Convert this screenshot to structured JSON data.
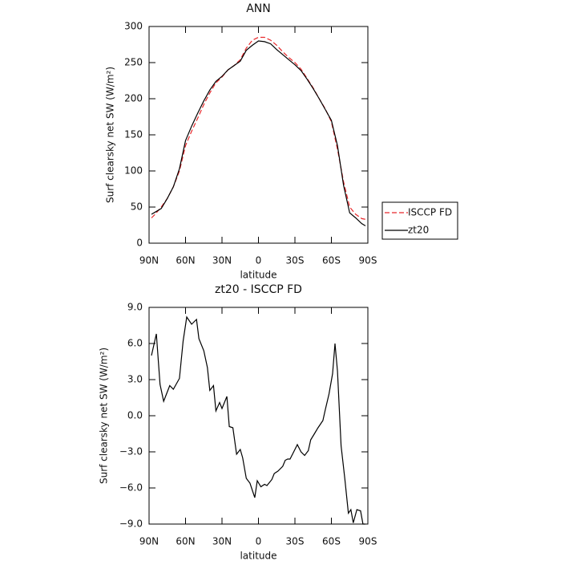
{
  "chart_data": [
    {
      "type": "line",
      "title": "ANN",
      "xlabel": "latitude",
      "ylabel": "Surf clearsky net SW (W/m²)",
      "xlim": [
        90,
        -90
      ],
      "xticks": [
        {
          "value": 90,
          "label": "90N"
        },
        {
          "value": 60,
          "label": "60N"
        },
        {
          "value": 30,
          "label": "30N"
        },
        0,
        {
          "value": -30,
          "label": "30S"
        },
        {
          "value": -60,
          "label": "60S"
        },
        {
          "value": -90,
          "label": "90S"
        }
      ],
      "ylim": [
        0,
        300
      ],
      "yticks": [
        0,
        50,
        100,
        150,
        200,
        250,
        300
      ],
      "legend": "right",
      "x": [
        88,
        85,
        80,
        75,
        70,
        65,
        60,
        55,
        50,
        45,
        40,
        35,
        30,
        25,
        20,
        15,
        10,
        5,
        0,
        -5,
        -10,
        -15,
        -20,
        -25,
        -30,
        -35,
        -40,
        -45,
        -50,
        -55,
        -60,
        -65,
        -70,
        -75,
        -80,
        -85,
        -88
      ],
      "series": [
        {
          "name": "ISCCP FD",
          "color": "#e8282b",
          "dash": true,
          "values": [
            35,
            40,
            50,
            62,
            78,
            100,
            135,
            155,
            173,
            192,
            208,
            222,
            230,
            240,
            246,
            254,
            270,
            281,
            285,
            285,
            281,
            274,
            265,
            257,
            250,
            241,
            228,
            215,
            200,
            186,
            168,
            130,
            85,
            50,
            40,
            34,
            33
          ]
        },
        {
          "name": "zt20",
          "color": "#000000",
          "dash": false,
          "values": [
            40,
            43,
            48,
            62,
            78,
            103,
            142,
            162,
            180,
            197,
            212,
            224,
            231,
            240,
            246,
            252,
            267,
            274,
            280,
            279,
            276,
            268,
            261,
            254,
            247,
            239,
            227,
            214,
            200,
            185,
            170,
            135,
            80,
            42,
            35,
            27,
            24
          ]
        }
      ]
    },
    {
      "type": "line",
      "title": "zt20 - ISCCP FD",
      "xlabel": "latitude",
      "ylabel": "Surf clearsky net SW (W/m²)",
      "xlim": [
        90,
        -90
      ],
      "xticks": [
        {
          "value": 90,
          "label": "90N"
        },
        {
          "value": 60,
          "label": "60N"
        },
        {
          "value": 30,
          "label": "30N"
        },
        0,
        {
          "value": -30,
          "label": "30S"
        },
        {
          "value": -60,
          "label": "60S"
        },
        {
          "value": -90,
          "label": "90S"
        }
      ],
      "ylim": [
        -9,
        9
      ],
      "yticks": [
        {
          "value": -9,
          "label": "−9.0"
        },
        {
          "value": -6,
          "label": "−6.0"
        },
        {
          "value": -3,
          "label": "−3.0"
        },
        {
          "value": 0,
          "label": "0.0"
        },
        {
          "value": 3,
          "label": "3.0"
        },
        {
          "value": 6,
          "label": "6.0"
        },
        {
          "value": 9,
          "label": "9.0"
        }
      ],
      "x": [
        88,
        84,
        81,
        78,
        73,
        70,
        65,
        62,
        59,
        55,
        51,
        49,
        45,
        42,
        40,
        37,
        35,
        32,
        30,
        26,
        24,
        21,
        18,
        15,
        13,
        10,
        7,
        3,
        1,
        -2,
        -5,
        -7,
        -11,
        -13,
        -16,
        -20,
        -22,
        -24,
        -26,
        -29,
        -32,
        -35,
        -38,
        -41,
        -43,
        -46,
        -49,
        -53,
        -55,
        -58,
        -61,
        -63,
        -65,
        -68,
        -71,
        -74,
        -76,
        -78,
        -81,
        -84,
        -86,
        -88
      ],
      "series": [
        {
          "name": "zt20 - ISCCP FD",
          "color": "#000000",
          "dash": false,
          "values": [
            5.0,
            6.8,
            2.6,
            1.2,
            2.5,
            2.2,
            3.1,
            6.2,
            8.2,
            7.6,
            8.0,
            6.4,
            5.4,
            4.0,
            2.1,
            2.5,
            0.4,
            1.1,
            0.6,
            1.6,
            -0.9,
            -1.0,
            -3.2,
            -2.8,
            -3.5,
            -5.2,
            -5.6,
            -6.8,
            -5.4,
            -5.9,
            -5.7,
            -5.8,
            -5.3,
            -4.8,
            -4.6,
            -4.2,
            -3.7,
            -3.6,
            -3.6,
            -3.0,
            -2.4,
            -3.0,
            -3.3,
            -2.9,
            -2.0,
            -1.5,
            -1.0,
            -0.4,
            0.5,
            1.8,
            3.5,
            6.0,
            3.7,
            -2.5,
            -5.2,
            -8.1,
            -7.8,
            -8.9,
            -7.8,
            -7.9,
            -9.0,
            -9.0
          ]
        }
      ]
    }
  ]
}
